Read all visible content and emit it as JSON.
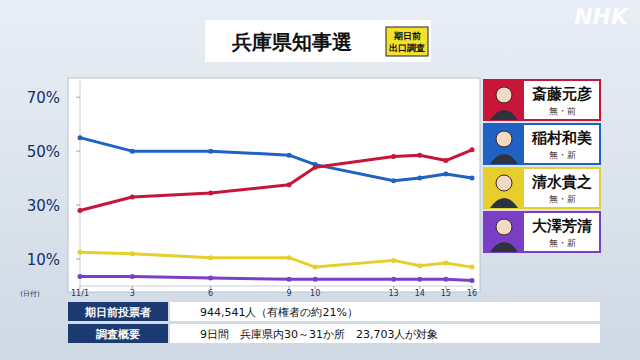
{
  "chart_data": {
    "type": "line",
    "title": "兵庫県知事選",
    "badge": [
      "期日前",
      "出口調査"
    ],
    "logo": "NHK",
    "x_label": "(日付)",
    "x": [
      1,
      3,
      6,
      9,
      10,
      13,
      14,
      15,
      16
    ],
    "xlim": [
      1,
      16
    ],
    "xticks": [
      {
        "value": 1,
        "label": "11/1"
      },
      3,
      6,
      9,
      10,
      13,
      14,
      15,
      16
    ],
    "ylim": [
      0,
      76
    ],
    "yticks": [
      {
        "value": 10,
        "label": "10%"
      },
      {
        "value": 30,
        "label": "30%"
      },
      {
        "value": 50,
        "label": "50%"
      },
      {
        "value": 70,
        "label": "70%"
      }
    ],
    "grid": false,
    "marker": "circle",
    "series": [
      {
        "name": "斎藤元彦",
        "status": "無・前",
        "color": "#c8163a",
        "values": [
          28,
          33,
          34.5,
          37.5,
          44,
          48,
          48.5,
          46.5,
          50.5
        ]
      },
      {
        "name": "稲村和美",
        "status": "無・新",
        "color": "#1f62c4",
        "values": [
          55,
          50,
          50,
          48.5,
          45,
          39,
          40,
          41.5,
          40
        ]
      },
      {
        "name": "清水貴之",
        "status": "無・新",
        "color": "#e6cf2c",
        "values": [
          12.5,
          12,
          10.5,
          10.5,
          7,
          9.5,
          7.5,
          8.5,
          7
        ]
      },
      {
        "name": "大澤芳清",
        "status": "無・新",
        "color": "#7a3fc6",
        "values": [
          3.5,
          3.5,
          3,
          2.5,
          2.5,
          2.5,
          2.5,
          2.5,
          2
        ]
      }
    ],
    "info_table": [
      {
        "label": "期日前投票者",
        "value": "944,541人（有権者の約21%）"
      },
      {
        "label": "調査概要",
        "value": "9日間　兵庫県内30～31か所　23,703人が対象"
      }
    ]
  }
}
